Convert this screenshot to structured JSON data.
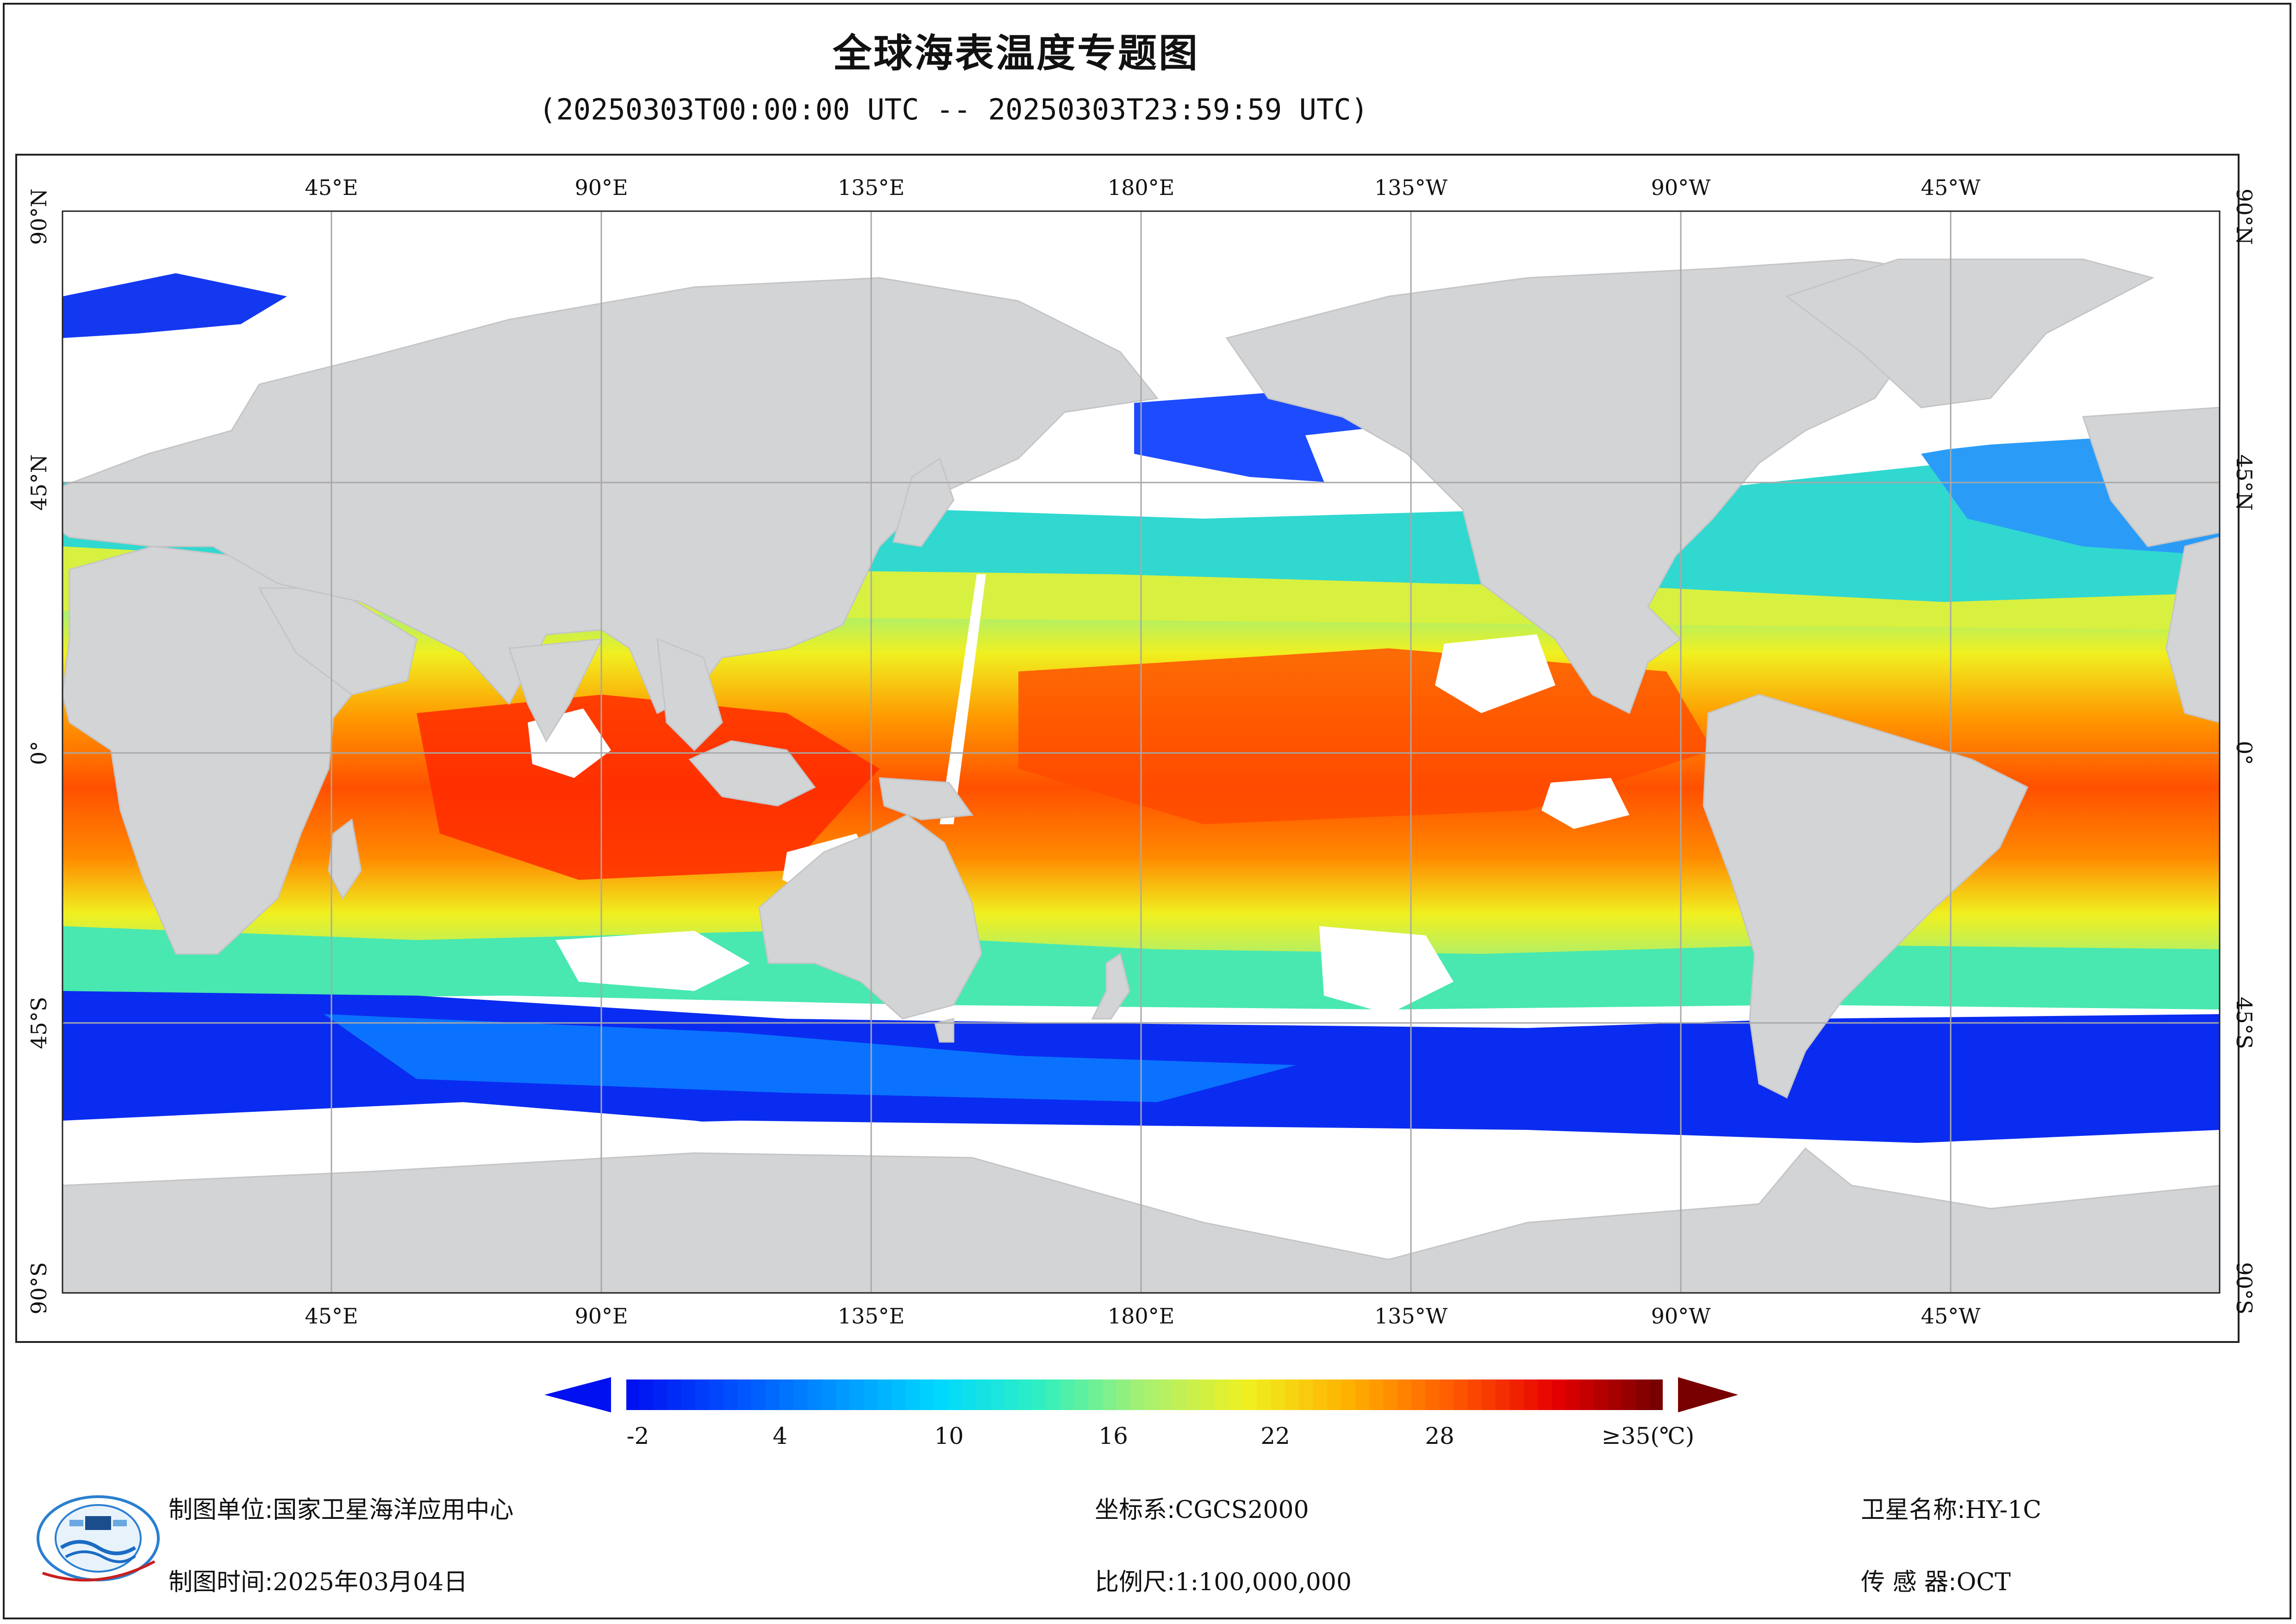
{
  "title": "全球海表温度专题图",
  "subtitle": "(20250303T00:00:00 UTC -- 20250303T23:59:59 UTC)",
  "map": {
    "projection": "equirectangular",
    "central_longitude": 180,
    "colors": {
      "land": "#d3d4d6",
      "no_data": "#ffffff",
      "grid": "#a8a8a8",
      "border": "#222222"
    },
    "lon_labels": [
      "45°E",
      "90°E",
      "135°E",
      "180°E",
      "135°W",
      "90°W",
      "45°W"
    ],
    "lon_values": [
      45,
      90,
      135,
      180,
      225,
      270,
      315
    ],
    "lat_labels": [
      "90°N",
      "45°N",
      "0°",
      "45°S",
      "90°S"
    ],
    "lat_values": [
      90,
      45,
      0,
      -45,
      -90
    ]
  },
  "colorbar": {
    "min": -2,
    "max": 35,
    "unit": "℃",
    "tick_labels": [
      "-2",
      "4",
      "10",
      "16",
      "22",
      "28",
      "≥35(℃)"
    ],
    "tick_values": [
      -2,
      4,
      10,
      16,
      22,
      28,
      35
    ],
    "stops": [
      "#0010f0",
      "#0050ff",
      "#0095ff",
      "#00d8ff",
      "#30f0c0",
      "#a8f070",
      "#f0f020",
      "#ffb000",
      "#ff5a00",
      "#e80000",
      "#780000"
    ],
    "under_color": "#0010f0",
    "over_color": "#780000"
  },
  "footer": {
    "unit_label": "制图单位:",
    "unit_value": "国家卫星海洋应用中心",
    "time_label": "制图时间:",
    "time_value": "2025年03月04日",
    "crs_label": "坐标系:",
    "crs_value": "CGCS2000",
    "scale_label": "比例尺:",
    "scale_value": "1:100,000,000",
    "satellite_label": "卫星名称:",
    "satellite_value": "HY-1C",
    "sensor_label": "传 感 器:",
    "sensor_value": "OCT"
  },
  "logo": {
    "icon": "nsoas-logo-icon"
  }
}
